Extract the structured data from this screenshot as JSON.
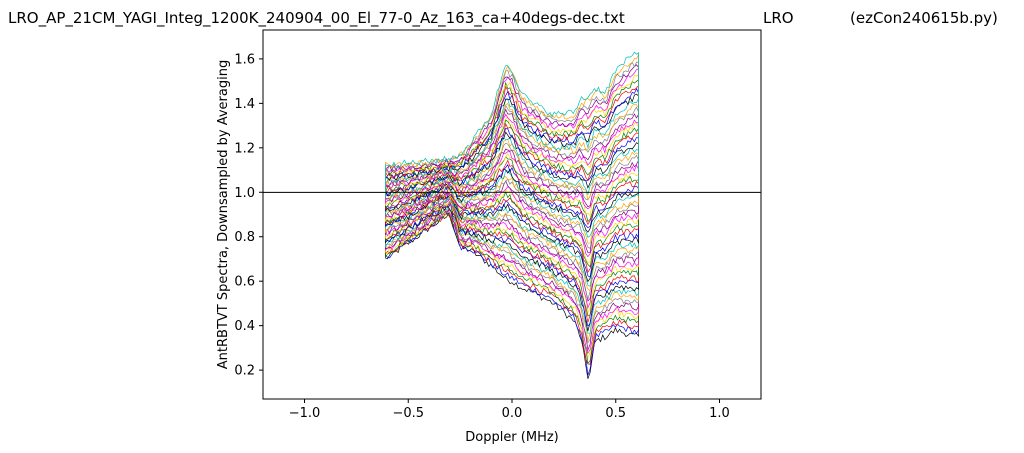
{
  "header": {
    "file_title": "LRO_AP_21CM_YAGI_Integ_1200K_240904_00_El_77-0_Az_163_ca+40degs-dec.txt",
    "site_title": "LRO",
    "program_title": "(ezCon240615b.py)"
  },
  "chart_data": {
    "type": "line",
    "xlabel": "Doppler (MHz)",
    "ylabel": "AntRBTVT Spectra, Downsampled by Averaging",
    "xlim": [
      -1.2,
      1.2
    ],
    "ylim": [
      0.07,
      1.73
    ],
    "xticks": [
      -1.0,
      -0.5,
      0.0,
      0.5,
      1.0
    ],
    "xtick_labels": [
      "−1.0",
      "−0.5",
      "0.0",
      "0.5",
      "1.0"
    ],
    "yticks": [
      0.2,
      0.4,
      0.6,
      0.8,
      1.0,
      1.2,
      1.4,
      1.6
    ],
    "ytick_labels": [
      "0.2",
      "0.4",
      "0.6",
      "0.8",
      "1.0",
      "1.2",
      "1.4",
      "1.6"
    ],
    "grid": false,
    "baseline": 1.0,
    "band": [
      -0.61,
      0.61
    ],
    "colors": [
      "#000000",
      "#0000ff",
      "#ff0000",
      "#008000",
      "#ffd700",
      "#ff00ff",
      "#800080",
      "#808080",
      "#ffa500",
      "#00bfbf"
    ],
    "series_envelope": {
      "x": [
        -0.61,
        -0.5,
        -0.4,
        -0.3,
        -0.25,
        -0.2,
        -0.1,
        -0.03,
        0.0,
        0.05,
        0.1,
        0.2,
        0.3,
        0.33,
        0.37,
        0.4,
        0.45,
        0.5,
        0.6
      ],
      "upper": [
        1.13,
        1.13,
        1.14,
        1.15,
        1.17,
        1.22,
        1.35,
        1.58,
        1.55,
        1.44,
        1.4,
        1.35,
        1.36,
        1.42,
        1.43,
        1.47,
        1.45,
        1.55,
        1.63
      ],
      "lower": [
        0.7,
        0.77,
        0.84,
        0.9,
        0.75,
        0.74,
        0.67,
        0.61,
        0.6,
        0.57,
        0.55,
        0.5,
        0.42,
        0.35,
        0.15,
        0.33,
        0.35,
        0.38,
        0.35
      ]
    }
  }
}
